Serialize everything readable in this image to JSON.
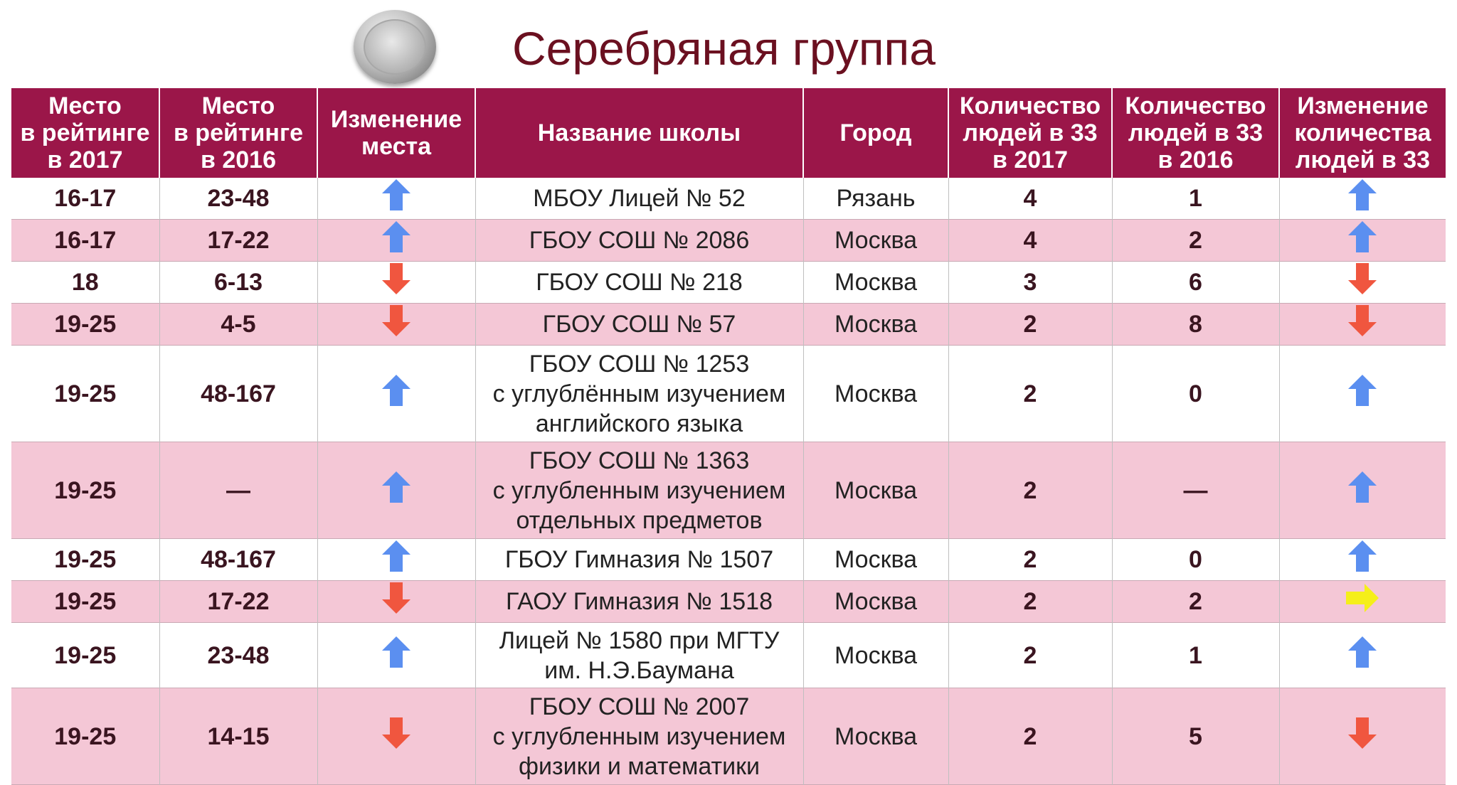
{
  "title": "Серебряная группа",
  "colors": {
    "header": "#9b1649",
    "row_alt": "#f4c7d6",
    "up": "#5b8ff0",
    "down": "#f0563f",
    "same": "#f5ef1a",
    "title": "#6b1020"
  },
  "table": {
    "headers": [
      "Место\nв рейтинге\nв 2017",
      "Место\nв рейтинге\nв 2016",
      "Изменение\nместа",
      "Название школы",
      "Город",
      "Количество\nлюдей в 33\nв 2017",
      "Количество\nлюдей в 33\nв 2016",
      "Изменение\nколичества\nлюдей в 33"
    ],
    "rows": [
      {
        "place2017": "16-17",
        "place2016": "23-48",
        "place_change": "up",
        "school": "МБОУ Лицей № 52",
        "city": "Рязань",
        "count2017": "4",
        "count2016": "1",
        "count_change": "up"
      },
      {
        "place2017": "16-17",
        "place2016": "17-22",
        "place_change": "up",
        "school": "ГБОУ СОШ № 2086",
        "city": "Москва",
        "count2017": "4",
        "count2016": "2",
        "count_change": "up"
      },
      {
        "place2017": "18",
        "place2016": "6-13",
        "place_change": "down",
        "school": "ГБОУ СОШ № 218",
        "city": "Москва",
        "count2017": "3",
        "count2016": "6",
        "count_change": "down"
      },
      {
        "place2017": "19-25",
        "place2016": "4-5",
        "place_change": "down",
        "school": "ГБОУ СОШ № 57",
        "city": "Москва",
        "count2017": "2",
        "count2016": "8",
        "count_change": "down"
      },
      {
        "place2017": "19-25",
        "place2016": "48-167",
        "place_change": "up",
        "school": "ГБОУ СОШ № 1253\nс углублённым изучением\nанглийского языка",
        "city": "Москва",
        "count2017": "2",
        "count2016": "0",
        "count_change": "up"
      },
      {
        "place2017": "19-25",
        "place2016": "—",
        "place_change": "up",
        "school": "ГБОУ СОШ № 1363\nс углубленным изучением\nотдельных предметов",
        "city": "Москва",
        "count2017": "2",
        "count2016": "—",
        "count_change": "up"
      },
      {
        "place2017": "19-25",
        "place2016": "48-167",
        "place_change": "up",
        "school": "ГБОУ Гимназия № 1507",
        "city": "Москва",
        "count2017": "2",
        "count2016": "0",
        "count_change": "up"
      },
      {
        "place2017": "19-25",
        "place2016": "17-22",
        "place_change": "down",
        "school": "ГАОУ Гимназия № 1518",
        "city": "Москва",
        "count2017": "2",
        "count2016": "2",
        "count_change": "same"
      },
      {
        "place2017": "19-25",
        "place2016": "23-48",
        "place_change": "up",
        "school": "Лицей № 1580 при МГТУ\nим. Н.Э.Баумана",
        "city": "Москва",
        "count2017": "2",
        "count2016": "1",
        "count_change": "up"
      },
      {
        "place2017": "19-25",
        "place2016": "14-15",
        "place_change": "down",
        "school": "ГБОУ СОШ № 2007\nс углубленным изучением\nфизики и математики",
        "city": "Москва",
        "count2017": "2",
        "count2016": "5",
        "count_change": "down"
      }
    ]
  }
}
